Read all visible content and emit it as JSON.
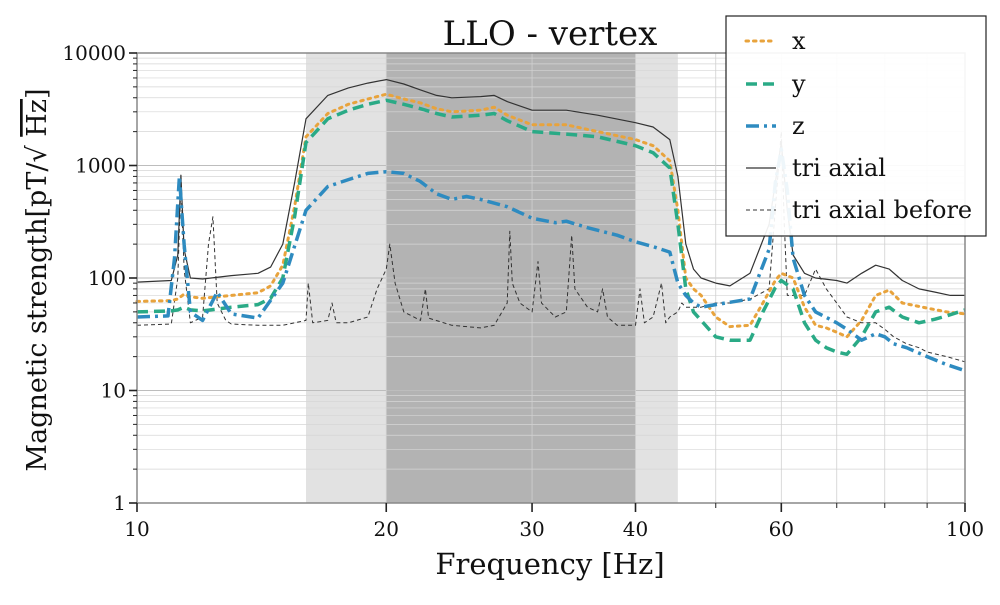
{
  "chart_data": {
    "type": "line",
    "title": "LLO - vertex",
    "xlabel": "Frequency [Hz]",
    "ylabel": "Magnetic strength[pT/√Hz]",
    "xscale": "log",
    "yscale": "log",
    "xlim": [
      10,
      100
    ],
    "ylim": [
      1,
      10000
    ],
    "xticks": [
      {
        "value": 10,
        "label": "10"
      },
      {
        "value": 20,
        "label": "20"
      },
      {
        "value": 30,
        "label": "30"
      },
      {
        "value": 40,
        "label": "40"
      },
      {
        "value": 60,
        "label": "60"
      },
      {
        "value": 100,
        "label": "100"
      }
    ],
    "yticks": [
      {
        "value": 1,
        "label": "1"
      },
      {
        "value": 10,
        "label": "10"
      },
      {
        "value": 100,
        "label": "100"
      },
      {
        "value": 1000,
        "label": "1000"
      },
      {
        "value": 10000,
        "label": "10000"
      }
    ],
    "grid": true,
    "legend_position": "top-right",
    "shaded_bands": [
      {
        "x0": 16,
        "x1": 45,
        "shade": "light",
        "color": "#e2e2e2"
      },
      {
        "x0": 20,
        "x1": 40,
        "shade": "dark",
        "color": "#b3b3b3"
      }
    ],
    "series": [
      {
        "name": "x",
        "color": "#e8a33c",
        "style": "dotted",
        "width": 3,
        "points": [
          [
            10,
            62
          ],
          [
            11,
            63
          ],
          [
            11.2,
            65
          ],
          [
            11.4,
            72
          ],
          [
            11.6,
            68
          ],
          [
            12,
            66
          ],
          [
            13,
            70
          ],
          [
            14,
            74
          ],
          [
            14.5,
            85
          ],
          [
            15,
            130
          ],
          [
            15.5,
            430
          ],
          [
            16,
            1800
          ],
          [
            17,
            2900
          ],
          [
            18,
            3500
          ],
          [
            19,
            3900
          ],
          [
            20,
            4300
          ],
          [
            21,
            3900
          ],
          [
            22,
            3600
          ],
          [
            23,
            3200
          ],
          [
            24,
            3000
          ],
          [
            26,
            3100
          ],
          [
            27,
            3300
          ],
          [
            28,
            2800
          ],
          [
            30,
            2300
          ],
          [
            33,
            2300
          ],
          [
            36,
            2000
          ],
          [
            40,
            1700
          ],
          [
            42,
            1500
          ],
          [
            44,
            1100
          ],
          [
            45,
            400
          ],
          [
            46,
            100
          ],
          [
            47,
            80
          ],
          [
            48,
            70
          ],
          [
            50,
            45
          ],
          [
            52,
            37
          ],
          [
            55,
            38
          ],
          [
            57,
            60
          ],
          [
            59,
            95
          ],
          [
            60,
            110
          ],
          [
            62,
            100
          ],
          [
            64,
            55
          ],
          [
            66,
            38
          ],
          [
            68,
            36
          ],
          [
            70,
            33
          ],
          [
            72,
            30
          ],
          [
            75,
            42
          ],
          [
            78,
            70
          ],
          [
            81,
            78
          ],
          [
            84,
            60
          ],
          [
            90,
            54
          ],
          [
            95,
            50
          ],
          [
            100,
            48
          ]
        ]
      },
      {
        "name": "y",
        "color": "#2aaa86",
        "style": "dashed",
        "width": 3.5,
        "points": [
          [
            10,
            50
          ],
          [
            11,
            51
          ],
          [
            11.2,
            52
          ],
          [
            11.4,
            55
          ],
          [
            11.6,
            52
          ],
          [
            12,
            51
          ],
          [
            13,
            55
          ],
          [
            14,
            58
          ],
          [
            14.5,
            66
          ],
          [
            15,
            100
          ],
          [
            15.5,
            350
          ],
          [
            16,
            1600
          ],
          [
            17,
            2600
          ],
          [
            18,
            3100
          ],
          [
            19,
            3500
          ],
          [
            20,
            3800
          ],
          [
            21,
            3500
          ],
          [
            22,
            3200
          ],
          [
            23,
            2900
          ],
          [
            24,
            2700
          ],
          [
            26,
            2800
          ],
          [
            27,
            2900
          ],
          [
            28,
            2500
          ],
          [
            30,
            2000
          ],
          [
            33,
            1900
          ],
          [
            36,
            1800
          ],
          [
            40,
            1500
          ],
          [
            42,
            1300
          ],
          [
            44,
            950
          ],
          [
            45,
            300
          ],
          [
            46,
            80
          ],
          [
            47,
            50
          ],
          [
            48,
            42
          ],
          [
            50,
            30
          ],
          [
            52,
            28
          ],
          [
            55,
            28
          ],
          [
            57,
            50
          ],
          [
            59,
            82
          ],
          [
            60,
            95
          ],
          [
            62,
            80
          ],
          [
            64,
            40
          ],
          [
            66,
            28
          ],
          [
            68,
            24
          ],
          [
            70,
            22
          ],
          [
            72,
            21
          ],
          [
            75,
            30
          ],
          [
            78,
            50
          ],
          [
            81,
            55
          ],
          [
            84,
            45
          ],
          [
            88,
            40
          ],
          [
            92,
            43
          ],
          [
            95,
            46
          ],
          [
            100,
            52
          ]
        ]
      },
      {
        "name": "z",
        "color": "#2e8bc0",
        "style": "dashdot",
        "width": 3.5,
        "points": [
          [
            10,
            45
          ],
          [
            10.9,
            46
          ],
          [
            11.1,
            150
          ],
          [
            11.25,
            800
          ],
          [
            11.4,
            200
          ],
          [
            11.6,
            50
          ],
          [
            12,
            42
          ],
          [
            12.5,
            75
          ],
          [
            13,
            48
          ],
          [
            14,
            44
          ],
          [
            15,
            90
          ],
          [
            16,
            400
          ],
          [
            17,
            650
          ],
          [
            18,
            750
          ],
          [
            19,
            850
          ],
          [
            20,
            880
          ],
          [
            21,
            850
          ],
          [
            22,
            720
          ],
          [
            23,
            560
          ],
          [
            24,
            500
          ],
          [
            25,
            530
          ],
          [
            26,
            500
          ],
          [
            28,
            430
          ],
          [
            30,
            340
          ],
          [
            32,
            310
          ],
          [
            33,
            320
          ],
          [
            35,
            280
          ],
          [
            38,
            240
          ],
          [
            40,
            210
          ],
          [
            42,
            190
          ],
          [
            44,
            170
          ],
          [
            45,
            90
          ],
          [
            46,
            70
          ],
          [
            47,
            60
          ],
          [
            48,
            55
          ],
          [
            50,
            58
          ],
          [
            55,
            65
          ],
          [
            58,
            180
          ],
          [
            59,
            700
          ],
          [
            60,
            1400
          ],
          [
            61,
            600
          ],
          [
            62,
            150
          ],
          [
            64,
            70
          ],
          [
            66,
            50
          ],
          [
            70,
            40
          ],
          [
            72,
            35
          ],
          [
            75,
            28
          ],
          [
            78,
            32
          ],
          [
            80,
            30
          ],
          [
            82,
            26
          ],
          [
            85,
            24
          ],
          [
            90,
            20
          ],
          [
            95,
            17
          ],
          [
            100,
            15
          ]
        ]
      },
      {
        "name": "tri axial",
        "color": "#333333",
        "style": "solid",
        "width": 1.2,
        "points": [
          [
            10,
            92
          ],
          [
            11,
            95
          ],
          [
            11.2,
            160
          ],
          [
            11.3,
            820
          ],
          [
            11.4,
            180
          ],
          [
            11.6,
            100
          ],
          [
            12,
            98
          ],
          [
            13,
            105
          ],
          [
            14,
            110
          ],
          [
            14.5,
            125
          ],
          [
            15,
            200
          ],
          [
            15.5,
            700
          ],
          [
            16,
            2600
          ],
          [
            17,
            4200
          ],
          [
            18,
            4900
          ],
          [
            19,
            5400
          ],
          [
            20,
            5800
          ],
          [
            21,
            5300
          ],
          [
            22,
            4700
          ],
          [
            23,
            4200
          ],
          [
            24,
            4000
          ],
          [
            26,
            4100
          ],
          [
            27,
            4200
          ],
          [
            28,
            3700
          ],
          [
            30,
            3100
          ],
          [
            33,
            3100
          ],
          [
            36,
            2800
          ],
          [
            40,
            2400
          ],
          [
            42,
            2200
          ],
          [
            44,
            1700
          ],
          [
            45,
            800
          ],
          [
            46,
            200
          ],
          [
            47,
            120
          ],
          [
            48,
            100
          ],
          [
            50,
            90
          ],
          [
            52,
            85
          ],
          [
            55,
            110
          ],
          [
            58,
            300
          ],
          [
            60,
            1600
          ],
          [
            61,
            400
          ],
          [
            62,
            160
          ],
          [
            64,
            110
          ],
          [
            66,
            100
          ],
          [
            70,
            95
          ],
          [
            72,
            90
          ],
          [
            75,
            110
          ],
          [
            78,
            130
          ],
          [
            81,
            120
          ],
          [
            84,
            95
          ],
          [
            88,
            80
          ],
          [
            92,
            75
          ],
          [
            96,
            70
          ],
          [
            100,
            70
          ]
        ]
      },
      {
        "name": "tri axial before",
        "color": "#333333",
        "style": "dashed-thin",
        "width": 1,
        "points": [
          [
            10,
            38
          ],
          [
            11,
            39
          ],
          [
            11.2,
            100
          ],
          [
            11.3,
            700
          ],
          [
            11.4,
            120
          ],
          [
            11.6,
            40
          ],
          [
            12,
            45
          ],
          [
            12.2,
            200
          ],
          [
            12.35,
            350
          ],
          [
            12.5,
            60
          ],
          [
            12.8,
            42
          ],
          [
            13,
            39
          ],
          [
            14,
            38
          ],
          [
            15,
            38
          ],
          [
            16,
            42
          ],
          [
            16.1,
            90
          ],
          [
            16.3,
            40
          ],
          [
            17,
            42
          ],
          [
            17.2,
            60
          ],
          [
            17.4,
            40
          ],
          [
            18,
            40
          ],
          [
            19,
            45
          ],
          [
            19.5,
            80
          ],
          [
            20,
            120
          ],
          [
            20.2,
            200
          ],
          [
            20.5,
            90
          ],
          [
            21,
            50
          ],
          [
            22,
            42
          ],
          [
            22.3,
            80
          ],
          [
            22.5,
            44
          ],
          [
            24,
            38
          ],
          [
            26,
            36
          ],
          [
            27,
            38
          ],
          [
            28,
            60
          ],
          [
            28.2,
            260
          ],
          [
            28.4,
            90
          ],
          [
            29,
            60
          ],
          [
            30,
            50
          ],
          [
            30.5,
            140
          ],
          [
            30.8,
            60
          ],
          [
            32,
            45
          ],
          [
            33,
            50
          ],
          [
            33.5,
            240
          ],
          [
            33.8,
            80
          ],
          [
            35,
            55
          ],
          [
            36,
            50
          ],
          [
            36.5,
            80
          ],
          [
            37,
            45
          ],
          [
            38,
            38
          ],
          [
            40,
            38
          ],
          [
            40.5,
            80
          ],
          [
            41,
            40
          ],
          [
            42,
            45
          ],
          [
            43,
            90
          ],
          [
            43.5,
            40
          ],
          [
            44,
            45
          ],
          [
            45,
            50
          ],
          [
            45.5,
            60
          ],
          [
            46,
            55
          ],
          [
            48,
            55
          ],
          [
            50,
            60
          ],
          [
            52,
            60
          ],
          [
            55,
            65
          ],
          [
            58,
            80
          ],
          [
            60,
            2000
          ],
          [
            60.5,
            300
          ],
          [
            61,
            70
          ],
          [
            64,
            70
          ],
          [
            66,
            120
          ],
          [
            68,
            80
          ],
          [
            70,
            60
          ],
          [
            72,
            45
          ],
          [
            75,
            40
          ],
          [
            78,
            40
          ],
          [
            80,
            35
          ],
          [
            82,
            30
          ],
          [
            85,
            26
          ],
          [
            88,
            24
          ],
          [
            90,
            22
          ],
          [
            95,
            20
          ],
          [
            100,
            18
          ]
        ]
      }
    ]
  }
}
